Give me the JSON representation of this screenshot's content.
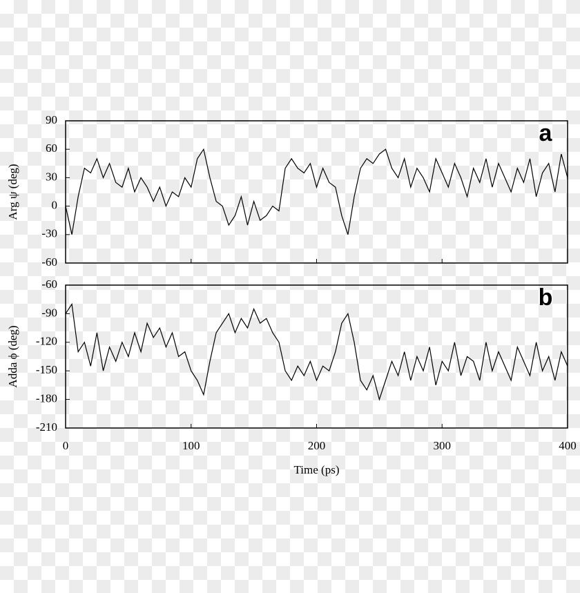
{
  "chart_data": [
    {
      "type": "line",
      "annotation": "a",
      "ylabel": "Arg ψ (deg)",
      "x": [
        0,
        5,
        10,
        15,
        20,
        25,
        30,
        35,
        40,
        45,
        50,
        55,
        60,
        65,
        70,
        75,
        80,
        85,
        90,
        95,
        100,
        105,
        110,
        115,
        120,
        125,
        130,
        135,
        140,
        145,
        150,
        155,
        160,
        165,
        170,
        175,
        180,
        185,
        190,
        195,
        200,
        205,
        210,
        215,
        220,
        225,
        230,
        235,
        240,
        245,
        250,
        255,
        260,
        265,
        270,
        275,
        280,
        285,
        290,
        295,
        300,
        305,
        310,
        315,
        320,
        325,
        330,
        335,
        340,
        345,
        350,
        355,
        360,
        365,
        370,
        375,
        380,
        385,
        390,
        395,
        400
      ],
      "series": [
        {
          "color": "#000000",
          "values": [
            0,
            -30,
            10,
            40,
            35,
            50,
            30,
            45,
            25,
            20,
            40,
            15,
            30,
            20,
            5,
            20,
            0,
            15,
            10,
            30,
            20,
            50,
            60,
            30,
            5,
            0,
            -20,
            -10,
            10,
            -20,
            5,
            -15,
            -10,
            0,
            -5,
            40,
            50,
            40,
            35,
            45,
            20,
            40,
            25,
            20,
            -10,
            -30,
            10,
            40,
            50,
            45,
            55,
            60,
            40,
            30,
            50,
            20,
            40,
            30,
            15,
            50,
            35,
            20,
            45,
            30,
            10,
            40,
            25,
            50,
            20,
            45,
            30,
            15,
            40,
            25,
            50,
            10,
            35,
            45,
            15,
            55,
            30
          ]
        }
      ],
      "xlim": [
        0,
        400
      ],
      "xticks": [
        0,
        100,
        200,
        300,
        400
      ],
      "ylim": [
        -60,
        90
      ],
      "yticks": [
        -60,
        -30,
        0,
        30,
        60,
        90
      ]
    },
    {
      "type": "line",
      "annotation": "b",
      "ylabel": "Adda ϕ (deg)",
      "xlabel": "Time (ps)",
      "x": [
        0,
        5,
        10,
        15,
        20,
        25,
        30,
        35,
        40,
        45,
        50,
        55,
        60,
        65,
        70,
        75,
        80,
        85,
        90,
        95,
        100,
        105,
        110,
        115,
        120,
        125,
        130,
        135,
        140,
        145,
        150,
        155,
        160,
        165,
        170,
        175,
        180,
        185,
        190,
        195,
        200,
        205,
        210,
        215,
        220,
        225,
        230,
        235,
        240,
        245,
        250,
        255,
        260,
        265,
        270,
        275,
        280,
        285,
        290,
        295,
        300,
        305,
        310,
        315,
        320,
        325,
        330,
        335,
        340,
        345,
        350,
        355,
        360,
        365,
        370,
        375,
        380,
        385,
        390,
        395,
        400
      ],
      "series": [
        {
          "color": "#000000",
          "values": [
            -90,
            -80,
            -130,
            -120,
            -145,
            -110,
            -150,
            -125,
            -140,
            -120,
            -135,
            -110,
            -130,
            -100,
            -115,
            -105,
            -125,
            -110,
            -135,
            -130,
            -150,
            -160,
            -175,
            -140,
            -110,
            -100,
            -90,
            -110,
            -95,
            -105,
            -85,
            -100,
            -95,
            -110,
            -120,
            -150,
            -160,
            -145,
            -155,
            -140,
            -160,
            -145,
            -150,
            -130,
            -100,
            -90,
            -120,
            -160,
            -170,
            -155,
            -180,
            -160,
            -140,
            -155,
            -130,
            -160,
            -135,
            -150,
            -125,
            -165,
            -140,
            -150,
            -120,
            -155,
            -135,
            -140,
            -160,
            -120,
            -150,
            -130,
            -145,
            -160,
            -125,
            -140,
            -155,
            -120,
            -150,
            -135,
            -160,
            -130,
            -145
          ]
        }
      ],
      "xlim": [
        0,
        400
      ],
      "xticks": [
        0,
        100,
        200,
        300,
        400
      ],
      "ylim": [
        -210,
        -60
      ],
      "yticks": [
        -210,
        -180,
        -150,
        -120,
        -90,
        -60
      ]
    }
  ]
}
